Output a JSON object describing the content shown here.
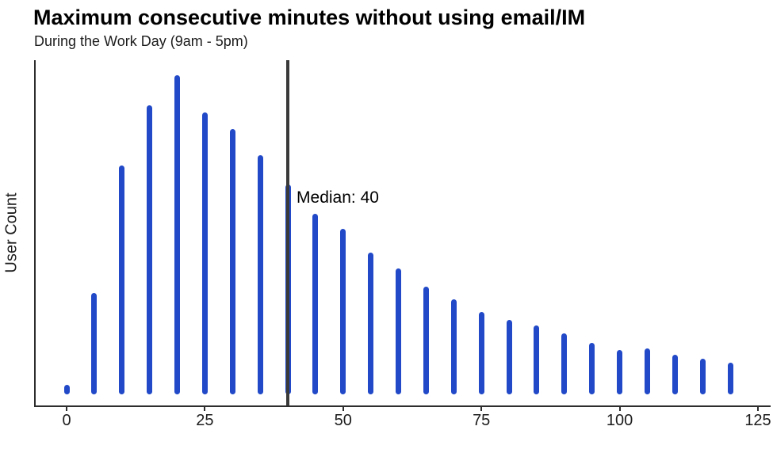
{
  "title": "Maximum consecutive minutes without using email/IM",
  "subtitle": "During the Work Day (9am - 5pm)",
  "chart_data": {
    "type": "bar",
    "title": "Maximum consecutive minutes without using email/IM",
    "subtitle": "During the Work Day (9am - 5pm)",
    "xlabel": "",
    "ylabel": "User Count",
    "x": [
      0,
      5,
      10,
      15,
      20,
      25,
      30,
      35,
      40,
      45,
      50,
      55,
      60,
      65,
      70,
      75,
      80,
      85,
      90,
      95,
      100,
      105,
      110,
      115,
      120
    ],
    "values": [
      12,
      128,
      289,
      365,
      403,
      356,
      335,
      302,
      265,
      228,
      209,
      179,
      159,
      136,
      120,
      104,
      94,
      87,
      77,
      65,
      56,
      58,
      50,
      45,
      40
    ],
    "x_ticks": [
      0,
      25,
      50,
      75,
      100,
      125
    ],
    "xlim": [
      0,
      125
    ],
    "y_axis_tick_labels": "none",
    "grid": false,
    "legend": false,
    "annotation": {
      "median_value": 40,
      "median_label": "Median: 40"
    },
    "colors": {
      "bar": "#2149c8",
      "median_line": "#3a3a3a",
      "axis": "#2d2d2d",
      "text": "#111111"
    }
  }
}
